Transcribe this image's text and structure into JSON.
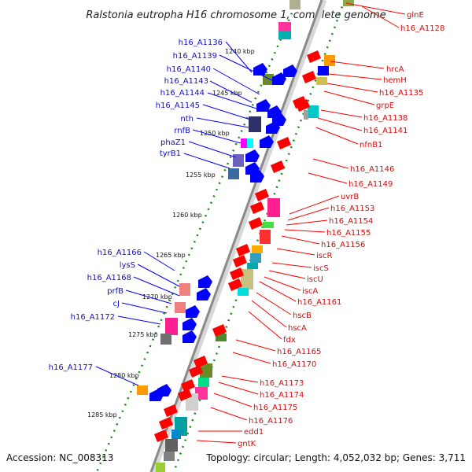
{
  "title": "Ralstonia eutropha H16 chromosome 1, complete genome",
  "footer": {
    "accession": "Accession: NC_008313",
    "summary": "Topology: circular; Length: 4,052,032 bp; Genes: 3,711"
  },
  "scale_labels": [
    "1240 kbp",
    "1245 kbp",
    "1250 kbp",
    "1255 kbp",
    "1260 kbp",
    "1265 kbp",
    "1270 kbp",
    "1275 kbp",
    "1280 kbp",
    "1285 kbp"
  ],
  "left_labels": [
    "h16_A1136",
    "h16_A1139",
    "h16_A1140",
    "h16_A1143",
    "h16_A1144",
    "h16_A1145",
    "nth",
    "rnfB",
    "phaZ1",
    "tyrB1",
    "h16_A1166",
    "lysS",
    "h16_A1168",
    "prfB",
    "cJ",
    "h16_A1172",
    "h16_A1177"
  ],
  "right_labels": [
    "glnE",
    "h16_A1128",
    "hrcA",
    "hemH",
    "h16_A1135",
    "grpE",
    "h16_A1138",
    "h16_A1141",
    "nfnB1",
    "h16_A1146",
    "h16_A1149",
    "uvrB",
    "h16_A1153",
    "h16_A1154",
    "h16_A1155",
    "h16_A1156",
    "iscR",
    "iscS",
    "iscU",
    "iscA",
    "h16_A1161",
    "hscB",
    "hscA",
    "fdx",
    "h16_A1165",
    "h16_A1170",
    "h16_A1173",
    "h16_A1174",
    "h16_A1175",
    "h16_A1176",
    "edd1",
    "gntK"
  ],
  "colors": {
    "gene_forward": "#ff0000",
    "gene_reverse": "#0000ff",
    "backbone": "#999999",
    "gc_dots": "#1a8a1a",
    "left_label": "#1010c0",
    "right_label": "#cc1010"
  }
}
